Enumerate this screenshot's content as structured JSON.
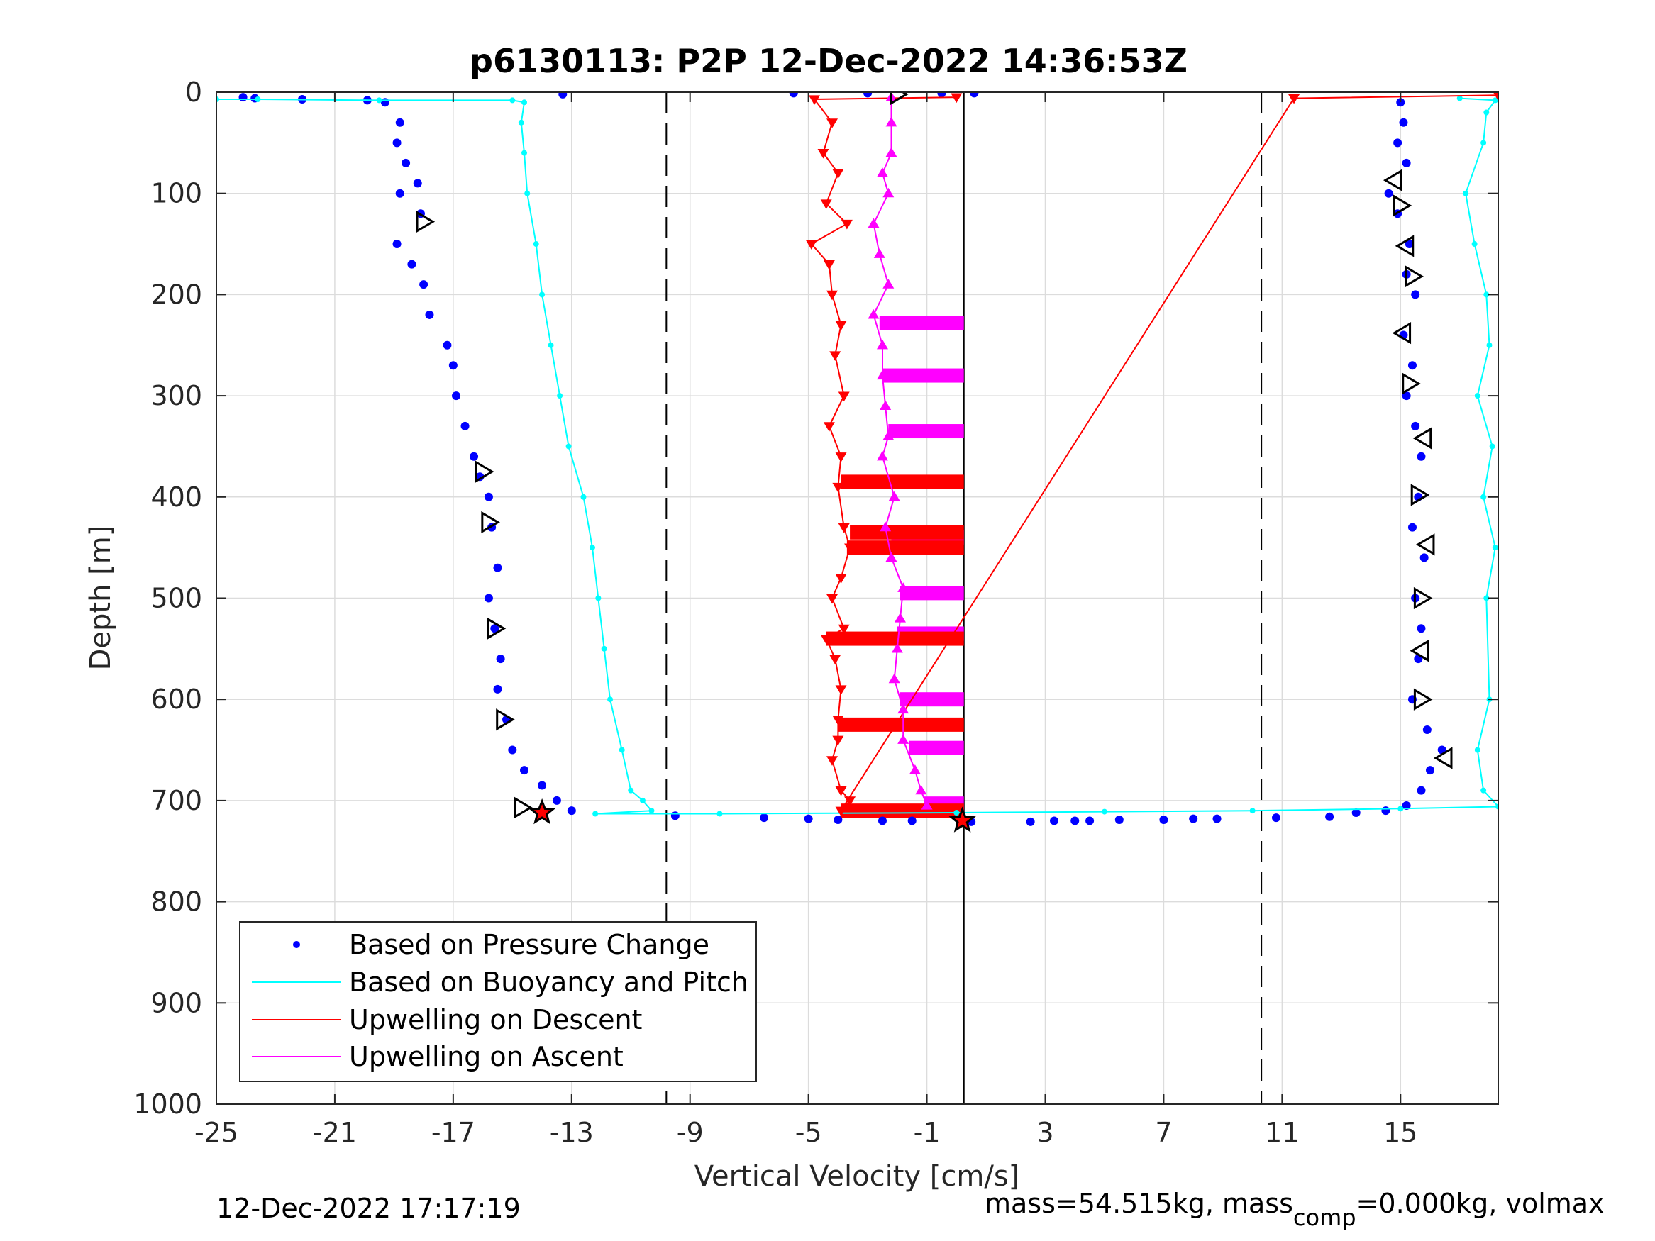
{
  "chart_data": {
    "type": "scatter",
    "title": "p6130113: P2P 12-Dec-2022 14:36:53Z",
    "xlabel": "Vertical Velocity [cm/s]",
    "ylabel": "Depth [m]",
    "xlim": [
      -25,
      18.3
    ],
    "ylim": [
      1000,
      0
    ],
    "y_reversed": true,
    "grid": true,
    "xticks": [
      -25,
      -21,
      -17,
      -13,
      -9,
      -5,
      -1,
      3,
      7,
      11,
      15
    ],
    "xtick_labels": [
      "-25",
      "-21",
      "-17",
      "-13",
      "-9",
      "-5",
      "-1",
      "3",
      "7",
      "11",
      "15"
    ],
    "yticks": [
      0,
      100,
      200,
      300,
      400,
      500,
      600,
      700,
      800,
      900,
      1000
    ],
    "ytick_labels": [
      "0",
      "100",
      "200",
      "300",
      "400",
      "500",
      "600",
      "700",
      "800",
      "900",
      "1000"
    ],
    "reference_lines": [
      {
        "x": -9.8,
        "style": "dashed",
        "color": "#000000"
      },
      {
        "x": 10.3,
        "style": "dashed",
        "color": "#000000"
      },
      {
        "x": 0.25,
        "style": "solid",
        "color": "#000000"
      }
    ],
    "legend": {
      "placement": "bottom-left",
      "entries": [
        {
          "label": "Based on Pressure Change",
          "color": "#0000ff",
          "marker": "dot"
        },
        {
          "label": "Based on Buoyancy and Pitch",
          "color": "#00ffff",
          "marker": "line"
        },
        {
          "label": "Upwelling on Descent",
          "color": "#ff0000",
          "marker": "line"
        },
        {
          "label": "Upwelling on Ascent",
          "color": "#ff00ff",
          "marker": "line"
        }
      ]
    },
    "series": [
      {
        "name": "Based on Pressure Change",
        "color": "#0000ff",
        "marker": "dot",
        "phase": "descent",
        "points": [
          [
            -24.1,
            5
          ],
          [
            -23.7,
            6
          ],
          [
            -22.1,
            7
          ],
          [
            -19.9,
            8
          ],
          [
            -19.3,
            10
          ],
          [
            -18.8,
            30
          ],
          [
            -18.9,
            50
          ],
          [
            -18.6,
            70
          ],
          [
            -18.2,
            90
          ],
          [
            -18.8,
            100
          ],
          [
            -18.1,
            120
          ],
          [
            -18.9,
            150
          ],
          [
            -18.4,
            170
          ],
          [
            -18.0,
            190
          ],
          [
            -17.8,
            220
          ],
          [
            -17.2,
            250
          ],
          [
            -17.0,
            270
          ],
          [
            -16.9,
            300
          ],
          [
            -16.6,
            330
          ],
          [
            -16.3,
            360
          ],
          [
            -16.1,
            380
          ],
          [
            -15.8,
            400
          ],
          [
            -15.7,
            430
          ],
          [
            -15.5,
            470
          ],
          [
            -15.8,
            500
          ],
          [
            -15.6,
            530
          ],
          [
            -15.4,
            560
          ],
          [
            -15.5,
            590
          ],
          [
            -15.2,
            620
          ],
          [
            -15.0,
            650
          ],
          [
            -14.6,
            670
          ],
          [
            -14.0,
            685
          ],
          [
            -13.5,
            700
          ],
          [
            -13.0,
            710
          ],
          [
            -13.3,
            2
          ]
        ]
      },
      {
        "name": "Based on Pressure Change",
        "color": "#0000ff",
        "marker": "dot",
        "phase": "ascent",
        "points": [
          [
            15.0,
            10
          ],
          [
            15.1,
            30
          ],
          [
            14.9,
            50
          ],
          [
            15.2,
            70
          ],
          [
            14.6,
            100
          ],
          [
            14.9,
            120
          ],
          [
            15.3,
            150
          ],
          [
            15.2,
            180
          ],
          [
            15.5,
            200
          ],
          [
            15.1,
            240
          ],
          [
            15.4,
            270
          ],
          [
            15.2,
            300
          ],
          [
            15.5,
            330
          ],
          [
            15.7,
            360
          ],
          [
            15.6,
            400
          ],
          [
            15.4,
            430
          ],
          [
            15.8,
            460
          ],
          [
            15.5,
            500
          ],
          [
            15.7,
            530
          ],
          [
            15.6,
            560
          ],
          [
            15.4,
            600
          ],
          [
            15.9,
            630
          ],
          [
            16.4,
            650
          ],
          [
            16.0,
            670
          ],
          [
            15.7,
            690
          ],
          [
            15.2,
            705
          ],
          [
            14.5,
            710
          ],
          [
            13.5,
            712
          ],
          [
            -5.5,
            1
          ],
          [
            -3.0,
            1
          ],
          [
            -0.5,
            1
          ],
          [
            0.6,
            1
          ]
        ]
      },
      {
        "name": "Based on Pressure Change",
        "color": "#0000ff",
        "marker": "dot",
        "phase": "bottom",
        "points": [
          [
            -9.5,
            715
          ],
          [
            -6.5,
            717
          ],
          [
            -5.0,
            718
          ],
          [
            -4.0,
            719
          ],
          [
            -2.5,
            720
          ],
          [
            -1.5,
            720
          ],
          [
            0.5,
            721
          ],
          [
            2.5,
            721
          ],
          [
            3.3,
            720
          ],
          [
            4.0,
            720
          ],
          [
            4.5,
            720
          ],
          [
            5.5,
            719
          ],
          [
            7.0,
            719
          ],
          [
            8.0,
            718
          ],
          [
            8.8,
            718
          ],
          [
            10.8,
            717
          ],
          [
            12.6,
            716
          ]
        ]
      },
      {
        "name": "Based on Buoyancy and Pitch",
        "color": "#00ffff",
        "marker": "line",
        "points": [
          [
            -25.0,
            7
          ],
          [
            -23.6,
            7
          ],
          [
            -19.5,
            8
          ],
          [
            -15.0,
            8
          ],
          [
            -14.6,
            10
          ],
          [
            -14.7,
            30
          ],
          [
            -14.6,
            60
          ],
          [
            -14.5,
            100
          ],
          [
            -14.2,
            150
          ],
          [
            -14.0,
            200
          ],
          [
            -13.7,
            250
          ],
          [
            -13.4,
            300
          ],
          [
            -13.1,
            350
          ],
          [
            -12.6,
            400
          ],
          [
            -12.3,
            450
          ],
          [
            -12.1,
            500
          ],
          [
            -11.9,
            550
          ],
          [
            -11.7,
            600
          ],
          [
            -11.3,
            650
          ],
          [
            -11.0,
            690
          ],
          [
            -10.6,
            700
          ],
          [
            -10.3,
            710
          ],
          [
            -12.2,
            713
          ],
          [
            -8.0,
            713
          ],
          [
            0.0,
            712
          ],
          [
            5.0,
            711
          ],
          [
            10.0,
            710
          ],
          [
            15.0,
            708
          ],
          [
            18.3,
            706
          ],
          [
            17.8,
            690
          ],
          [
            17.6,
            650
          ],
          [
            18.0,
            600
          ],
          [
            17.9,
            500
          ],
          [
            18.2,
            450
          ],
          [
            17.8,
            400
          ],
          [
            18.1,
            350
          ],
          [
            17.6,
            300
          ],
          [
            18.0,
            250
          ],
          [
            17.9,
            200
          ],
          [
            17.5,
            150
          ],
          [
            17.2,
            100
          ],
          [
            17.8,
            50
          ],
          [
            17.9,
            20
          ],
          [
            18.2,
            8
          ],
          [
            17.0,
            6
          ]
        ]
      },
      {
        "name": "Upwelling on Descent",
        "color": "#ff0000",
        "marker": "triangle-down",
        "points": [
          [
            0.0,
            5
          ],
          [
            -4.8,
            7
          ],
          [
            -4.2,
            30
          ],
          [
            -4.5,
            60
          ],
          [
            -4.0,
            80
          ],
          [
            -4.4,
            110
          ],
          [
            -3.7,
            130
          ],
          [
            -4.9,
            150
          ],
          [
            -4.3,
            170
          ],
          [
            -4.2,
            200
          ],
          [
            -3.9,
            230
          ],
          [
            -4.1,
            260
          ],
          [
            -3.8,
            300
          ],
          [
            -4.3,
            330
          ],
          [
            -3.9,
            360
          ],
          [
            -4.0,
            390
          ],
          [
            -3.8,
            430
          ],
          [
            -3.6,
            450
          ],
          [
            -3.9,
            480
          ],
          [
            -4.2,
            500
          ],
          [
            -3.8,
            530
          ],
          [
            -4.4,
            540
          ],
          [
            -4.1,
            560
          ],
          [
            -3.9,
            590
          ],
          [
            -4.0,
            620
          ],
          [
            -4.0,
            640
          ],
          [
            -4.2,
            660
          ],
          [
            -3.9,
            690
          ],
          [
            -3.6,
            700
          ],
          [
            -3.9,
            710
          ],
          [
            11.4,
            6
          ],
          [
            18.3,
            3
          ]
        ]
      },
      {
        "name": "Upwelling on Ascent",
        "color": "#ff00ff",
        "marker": "triangle-up",
        "points": [
          [
            -2.2,
            5
          ],
          [
            -2.2,
            30
          ],
          [
            -2.2,
            60
          ],
          [
            -2.5,
            80
          ],
          [
            -2.3,
            100
          ],
          [
            -2.8,
            130
          ],
          [
            -2.6,
            160
          ],
          [
            -2.3,
            190
          ],
          [
            -2.8,
            220
          ],
          [
            -2.5,
            250
          ],
          [
            -2.5,
            280
          ],
          [
            -2.4,
            310
          ],
          [
            -2.3,
            340
          ],
          [
            -2.5,
            360
          ],
          [
            -2.1,
            400
          ],
          [
            -2.4,
            430
          ],
          [
            -2.2,
            460
          ],
          [
            -1.8,
            490
          ],
          [
            -1.9,
            520
          ],
          [
            -2.0,
            550
          ],
          [
            -2.1,
            580
          ],
          [
            -1.8,
            610
          ],
          [
            -1.8,
            640
          ],
          [
            -1.4,
            670
          ],
          [
            -1.2,
            690
          ],
          [
            -1.0,
            705
          ]
        ]
      }
    ],
    "horizontal_segments": [
      {
        "series": "Upwelling on Ascent",
        "y": 228,
        "x0": -2.6,
        "x1": 0.25,
        "color": "#ff00ff"
      },
      {
        "series": "Upwelling on Ascent",
        "y": 280,
        "x0": -2.5,
        "x1": 0.25,
        "color": "#ff00ff"
      },
      {
        "series": "Upwelling on Ascent",
        "y": 335,
        "x0": -2.3,
        "x1": 0.25,
        "color": "#ff00ff"
      },
      {
        "series": "Upwelling on Ascent",
        "y": 440,
        "x0": -2.2,
        "x1": 0.25,
        "color": "#ff00ff"
      },
      {
        "series": "Upwelling on Ascent",
        "y": 495,
        "x0": -1.9,
        "x1": 0.25,
        "color": "#ff00ff"
      },
      {
        "series": "Upwelling on Ascent",
        "y": 535,
        "x0": -2.0,
        "x1": 0.25,
        "color": "#ff00ff"
      },
      {
        "series": "Upwelling on Ascent",
        "y": 600,
        "x0": -1.9,
        "x1": 0.25,
        "color": "#ff00ff"
      },
      {
        "series": "Upwelling on Ascent",
        "y": 648,
        "x0": -1.6,
        "x1": 0.25,
        "color": "#ff00ff"
      },
      {
        "series": "Upwelling on Ascent",
        "y": 703,
        "x0": -1.1,
        "x1": 0.25,
        "color": "#ff00ff"
      },
      {
        "series": "Upwelling on Descent",
        "y": 385,
        "x0": -3.9,
        "x1": 0.25,
        "color": "#ff0000"
      },
      {
        "series": "Upwelling on Descent",
        "y": 435,
        "x0": -3.6,
        "x1": 0.25,
        "color": "#ff0000"
      },
      {
        "series": "Upwelling on Descent",
        "y": 450,
        "x0": -3.7,
        "x1": 0.25,
        "color": "#ff0000"
      },
      {
        "series": "Upwelling on Descent",
        "y": 540,
        "x0": -4.4,
        "x1": 0.25,
        "color": "#ff0000"
      },
      {
        "series": "Upwelling on Descent",
        "y": 625,
        "x0": -4.0,
        "x1": 0.25,
        "color": "#ff0000"
      },
      {
        "series": "Upwelling on Descent",
        "y": 710,
        "x0": -3.9,
        "x1": 0.25,
        "color": "#ff0000"
      }
    ],
    "markers": [
      {
        "type": "triangle-right",
        "x": -18.0,
        "y": 128
      },
      {
        "type": "triangle-right",
        "x": -16.0,
        "y": 375
      },
      {
        "type": "triangle-right",
        "x": -15.8,
        "y": 425
      },
      {
        "type": "triangle-right",
        "x": -15.6,
        "y": 530
      },
      {
        "type": "triangle-right",
        "x": -15.3,
        "y": 620
      },
      {
        "type": "triangle-right",
        "x": -14.7,
        "y": 707
      },
      {
        "type": "triangle-right",
        "x": -2.0,
        "y": 2
      },
      {
        "type": "triangle-left",
        "x": 14.8,
        "y": 87
      },
      {
        "type": "triangle-right",
        "x": 15.0,
        "y": 112
      },
      {
        "type": "triangle-left",
        "x": 15.2,
        "y": 152
      },
      {
        "type": "triangle-right",
        "x": 15.4,
        "y": 182
      },
      {
        "type": "triangle-left",
        "x": 15.1,
        "y": 238
      },
      {
        "type": "triangle-right",
        "x": 15.3,
        "y": 288
      },
      {
        "type": "triangle-left",
        "x": 15.8,
        "y": 342
      },
      {
        "type": "triangle-right",
        "x": 15.6,
        "y": 398
      },
      {
        "type": "triangle-left",
        "x": 15.9,
        "y": 447
      },
      {
        "type": "triangle-right",
        "x": 15.7,
        "y": 500
      },
      {
        "type": "triangle-left",
        "x": 15.7,
        "y": 552
      },
      {
        "type": "triangle-right",
        "x": 15.7,
        "y": 600
      },
      {
        "type": "triangle-left",
        "x": 16.5,
        "y": 658
      },
      {
        "type": "star",
        "x": -14.0,
        "y": 712
      },
      {
        "type": "star",
        "x": 0.2,
        "y": 720
      }
    ]
  },
  "footer": {
    "timestamp": "12-Dec-2022 17:17:19",
    "mass_prefix": "mass=54.515kg, mass",
    "mass_subscript": "comp",
    "mass_suffix": "=0.000kg, volmax"
  }
}
